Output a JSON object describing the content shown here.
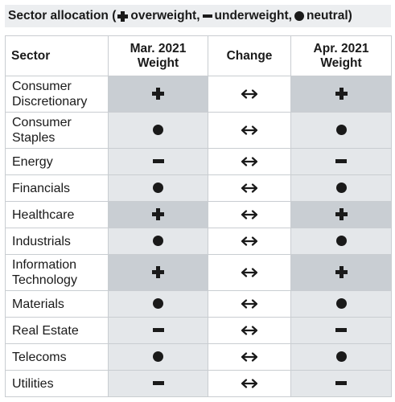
{
  "title": {
    "prefix": "Sector allocation (",
    "overweight": "overweight,",
    "underweight": "underweight,",
    "neutral": "neutral)"
  },
  "legend_icons": {
    "overweight": "plus-icon",
    "underweight": "minus-icon",
    "neutral": "dot-icon"
  },
  "headers": {
    "sector": "Sector",
    "mar_line1": "Mar. 2021",
    "mar_line2": "Weight",
    "change": "Change",
    "apr_line1": "Apr. 2021",
    "apr_line2": "Weight"
  },
  "colors": {
    "overweight_row": "#c9ced3",
    "other_row": "#e4e7ea"
  },
  "rows": [
    {
      "line1": "Consumer",
      "line2": "Discretionary",
      "mar": "overweight",
      "change": "unchanged",
      "apr": "overweight"
    },
    {
      "line1": "Consumer",
      "line2": "Staples",
      "mar": "neutral",
      "change": "unchanged",
      "apr": "neutral"
    },
    {
      "line1": "Energy",
      "line2": "",
      "mar": "underweight",
      "change": "unchanged",
      "apr": "underweight"
    },
    {
      "line1": "Financials",
      "line2": "",
      "mar": "neutral",
      "change": "unchanged",
      "apr": "neutral"
    },
    {
      "line1": "Healthcare",
      "line2": "",
      "mar": "overweight",
      "change": "unchanged",
      "apr": "overweight"
    },
    {
      "line1": "Industrials",
      "line2": "",
      "mar": "neutral",
      "change": "unchanged",
      "apr": "neutral"
    },
    {
      "line1": "Information",
      "line2": "Technology",
      "mar": "overweight",
      "change": "unchanged",
      "apr": "overweight"
    },
    {
      "line1": "Materials",
      "line2": "",
      "mar": "neutral",
      "change": "unchanged",
      "apr": "neutral"
    },
    {
      "line1": "Real Estate",
      "line2": "",
      "mar": "underweight",
      "change": "unchanged",
      "apr": "underweight"
    },
    {
      "line1": "Telecoms",
      "line2": "",
      "mar": "neutral",
      "change": "unchanged",
      "apr": "neutral"
    },
    {
      "line1": "Utilities",
      "line2": "",
      "mar": "underweight",
      "change": "unchanged",
      "apr": "underweight"
    }
  ]
}
